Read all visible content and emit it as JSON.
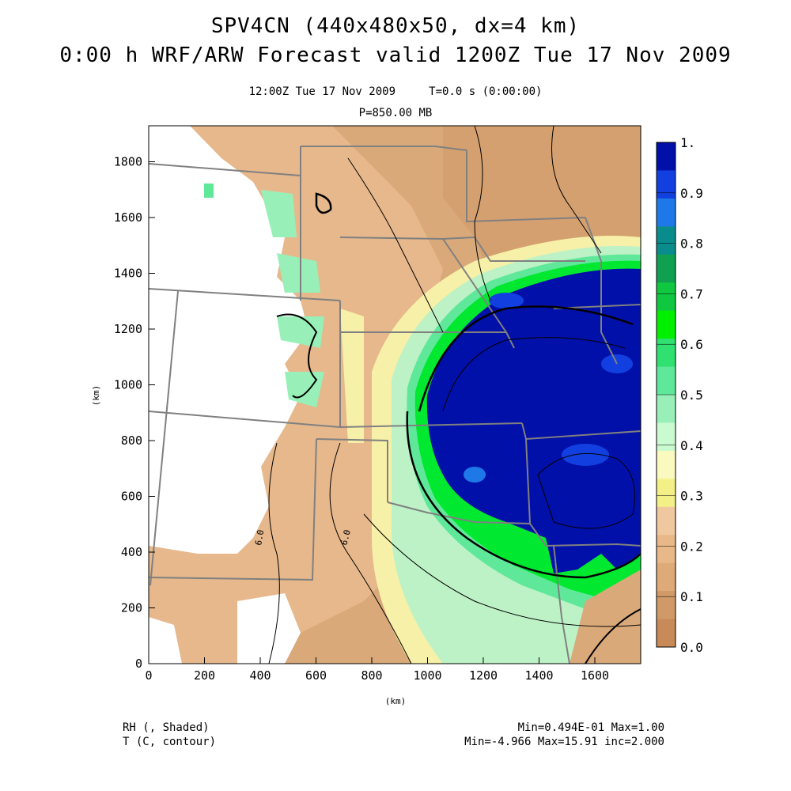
{
  "titles": {
    "line1": "SPV4CN (440x480x50, dx=4 km)",
    "line2": "0:00 h WRF/ARW Forecast valid 1200Z Tue 17 Nov 2009",
    "time_line": "12:00Z Tue 17 Nov 2009     T=0.0 s (0:00:00)",
    "level_line": "P=850.00 MB"
  },
  "axes": {
    "x_unit": "(km)",
    "y_unit": "(km)",
    "x_ticks": [
      "0",
      "200",
      "400",
      "600",
      "800",
      "1000",
      "1200",
      "1400",
      "1600"
    ],
    "y_ticks": [
      "0",
      "200",
      "400",
      "600",
      "800",
      "1000",
      "1200",
      "1400",
      "1600",
      "1800"
    ]
  },
  "colorbar": {
    "labels": [
      "1.",
      "0.9",
      "0.8",
      "0.7",
      "0.6",
      "0.5",
      "0.4",
      "0.3",
      "0.2",
      "0.1",
      "0.0"
    ],
    "colors": [
      "#0010a8",
      "#1240e0",
      "#1e78e8",
      "#0a8c8c",
      "#10a050",
      "#10c840",
      "#00f000",
      "#30e070",
      "#60e89a",
      "#98f0b8",
      "#cafad0",
      "#fafac0",
      "#f4f088",
      "#f0c8a0",
      "#e8b888",
      "#deaa78",
      "#d09a68",
      "#c88a58"
    ]
  },
  "contour_labels": [
    "6.0",
    "6.0"
  ],
  "legend": {
    "rh": "RH (, Shaded)",
    "t": "T (C, contour)",
    "rh_stats": "Min=0.494E-01 Max=1.00",
    "t_stats": "Min=-4.966 Max=15.91 inc=2.000"
  }
}
